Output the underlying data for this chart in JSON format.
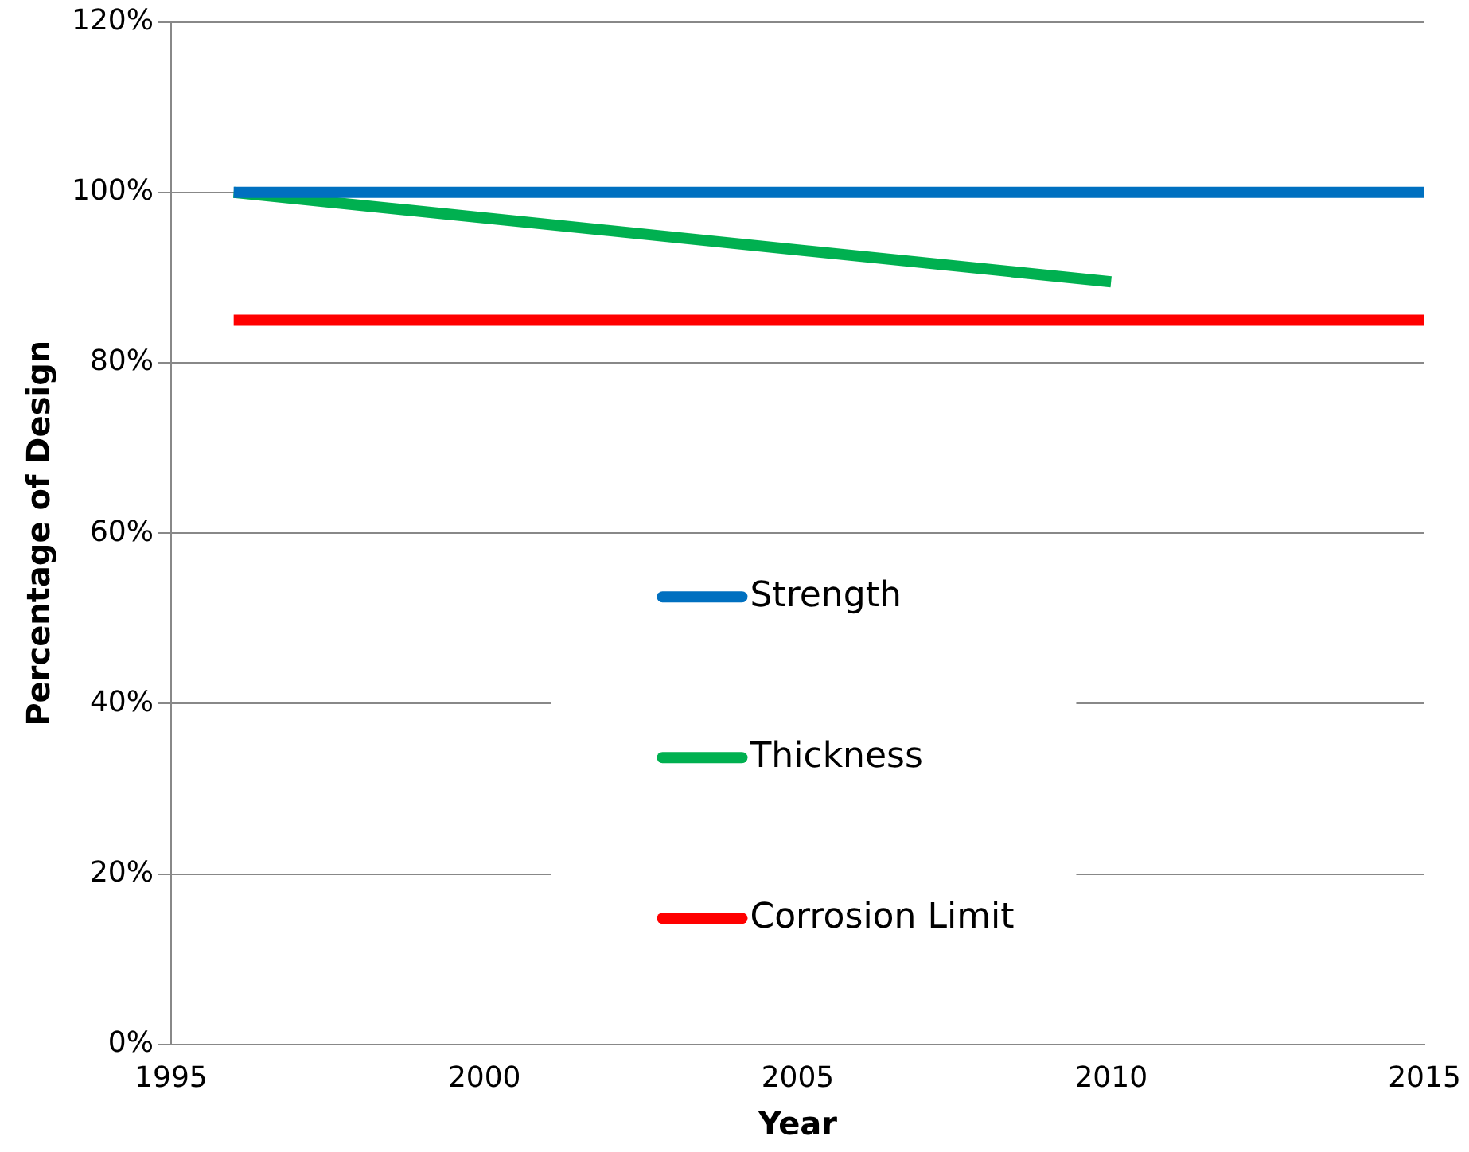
{
  "chart_data": {
    "type": "line",
    "xlabel": "Year",
    "ylabel": "Percentage of Design",
    "xlim": [
      1995,
      2015
    ],
    "xticks": [
      1995,
      2000,
      2005,
      2010,
      2015
    ],
    "ylim": [
      0,
      120
    ],
    "yticks": [
      {
        "value": 0,
        "label": "0%"
      },
      {
        "value": 20,
        "label": "20%"
      },
      {
        "value": 40,
        "label": "40%"
      },
      {
        "value": 60,
        "label": "60%"
      },
      {
        "value": 80,
        "label": "80%"
      },
      {
        "value": 100,
        "label": "100%"
      },
      {
        "value": 120,
        "label": "120%"
      }
    ],
    "grid": "y",
    "legend": "center",
    "marker": "none",
    "line_style": "solid",
    "series": [
      {
        "name": "Strength",
        "color": "#0070c0",
        "x": [
          1996,
          2015
        ],
        "values": [
          100,
          100
        ]
      },
      {
        "name": "Thickness",
        "color": "#00b050",
        "x": [
          1996,
          2010
        ],
        "values": [
          100,
          89.5
        ]
      },
      {
        "name": "Corrosion Limit",
        "color": "#ff0000",
        "x": [
          1996,
          2015
        ],
        "values": [
          85,
          85
        ]
      }
    ]
  }
}
